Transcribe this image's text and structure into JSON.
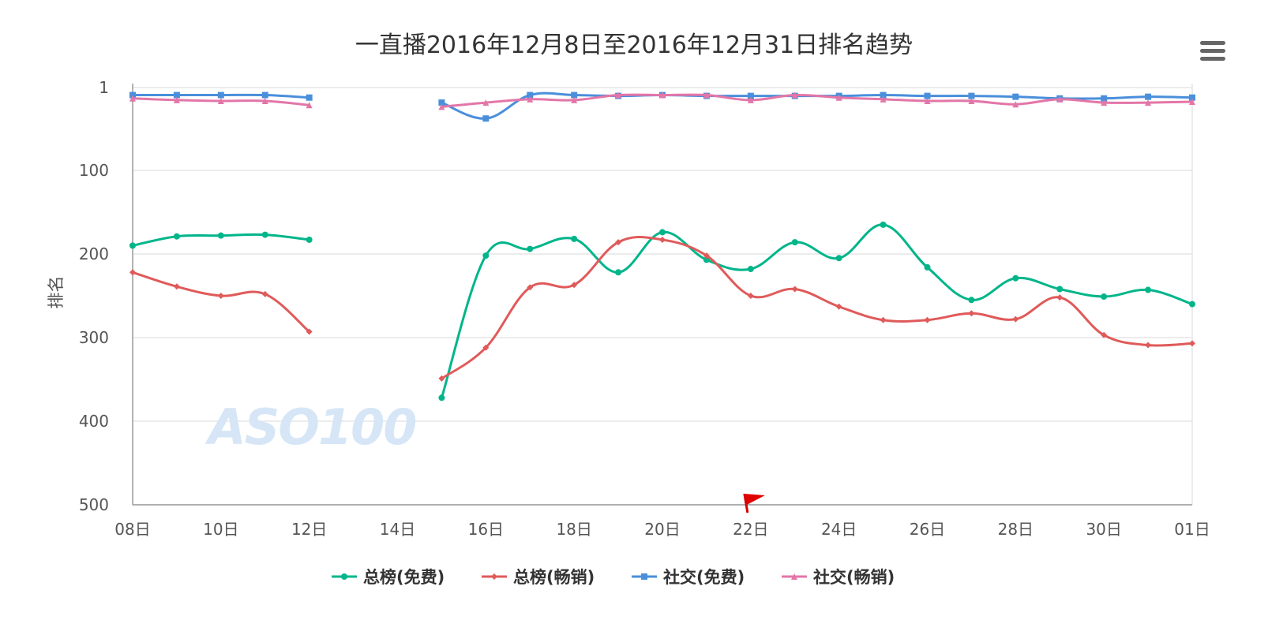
{
  "chart_data": {
    "type": "line",
    "title": "一直播2016年12月8日至2016年12月31日排名趋势",
    "ylabel": "排名",
    "y_reversed": true,
    "ylim": [
      1,
      500
    ],
    "y_ticks": [
      1,
      100,
      200,
      300,
      400,
      500
    ],
    "y_tick_labels": [
      "1",
      "100",
      "200",
      "300",
      "400",
      "500"
    ],
    "x_tick_labels": [
      "08日",
      "10日",
      "12日",
      "14日",
      "16日",
      "18日",
      "20日",
      "22日",
      "24日",
      "26日",
      "28日",
      "30日",
      "01日"
    ],
    "x_days": [
      "08日",
      "09日",
      "10日",
      "11日",
      "12日",
      "13日",
      "14日",
      "15日",
      "16日",
      "17日",
      "18日",
      "19日",
      "20日",
      "21日",
      "22日",
      "23日",
      "24日",
      "25日",
      "26日",
      "27日",
      "28日",
      "29日",
      "30日",
      "31日",
      "01日"
    ],
    "grid": true,
    "legend_position": "bottom-center",
    "watermark": "ASO100",
    "series": [
      {
        "name": "总榜(免费)",
        "color": "#00b58a",
        "marker": "circle",
        "values": [
          190,
          179,
          178,
          177,
          183,
          null,
          null,
          372,
          202,
          194,
          182,
          222,
          174,
          207,
          218,
          186,
          205,
          165,
          216,
          255,
          229,
          242,
          251,
          243,
          260
        ]
      },
      {
        "name": "总榜(畅销)",
        "color": "#e05a5a",
        "marker": "diamond",
        "values": [
          222,
          239,
          250,
          248,
          293,
          null,
          null,
          349,
          312,
          240,
          237,
          186,
          183,
          202,
          250,
          242,
          263,
          279,
          279,
          271,
          278,
          252,
          297,
          309,
          307
        ]
      },
      {
        "name": "社交(免费)",
        "color": "#4a8fdb",
        "marker": "square",
        "values": [
          10,
          10,
          10,
          10,
          13,
          null,
          null,
          19,
          38,
          10,
          10,
          11,
          10,
          11,
          11,
          11,
          11,
          10,
          11,
          11,
          12,
          14,
          14,
          12,
          13
        ]
      },
      {
        "name": "社交(畅销)",
        "color": "#e376a8",
        "marker": "triangle",
        "values": [
          14,
          16,
          17,
          17,
          22,
          null,
          null,
          24,
          19,
          15,
          16,
          10,
          10,
          10,
          16,
          10,
          13,
          15,
          17,
          17,
          21,
          15,
          19,
          19,
          18
        ]
      }
    ]
  }
}
